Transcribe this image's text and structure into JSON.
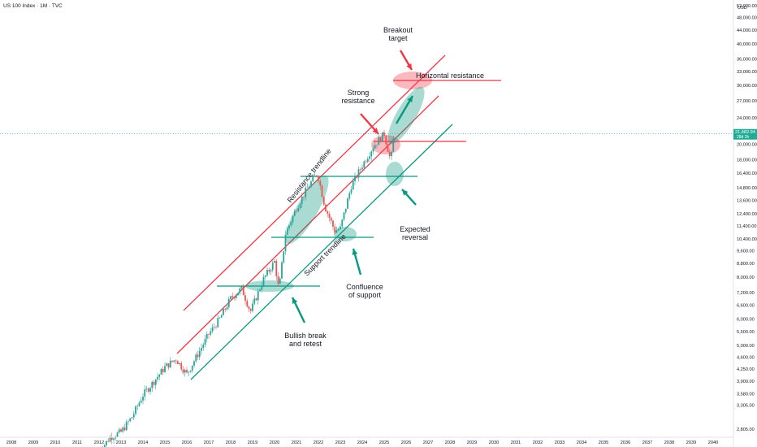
{
  "header": {
    "symbol_title": "US 100 Index · 1M · TVC"
  },
  "chart_data": {
    "type": "candlestick",
    "currency_label": "USD",
    "y_axis_ticks": [
      2805,
      3305,
      3580,
      3900,
      4250,
      4600,
      5000,
      5500,
      6000,
      6600,
      7200,
      8000,
      8800,
      9600,
      10400,
      11400,
      12400,
      13600,
      14800,
      16400,
      18000,
      20000,
      24000,
      27000,
      30000,
      33000,
      36000,
      40000,
      44000,
      48000,
      52000
    ],
    "y_axis_tick_labels": [
      "2,805.00",
      "3,305.00",
      "3,580.00",
      "3,900.00",
      "4,250.00",
      "4,600.00",
      "5,000.00",
      "5,500.00",
      "6,000.00",
      "6,600.00",
      "7,200.00",
      "8,000.00",
      "8,800.00",
      "9,600.00",
      "10,400.00",
      "11,400.00",
      "12,400.00",
      "13,600.00",
      "14,800.00",
      "16,400.00",
      "18,000.00",
      "20,000.00",
      "24,000.00",
      "27,000.00",
      "30,000.00",
      "33,000.00",
      "36,000.00",
      "40,000.00",
      "44,000.00",
      "48,000.00",
      "52,000.00"
    ],
    "y_scale": "log",
    "x_axis_labels": [
      "2008",
      "2009",
      "2010",
      "2011",
      "2012",
      "2013",
      "2014",
      "2015",
      "2016",
      "2017",
      "2018",
      "2019",
      "2020",
      "2021",
      "2022",
      "2023",
      "2024",
      "2025",
      "2026",
      "2027",
      "2028",
      "2029",
      "2030",
      "2031",
      "2032",
      "2033",
      "2034",
      "2035",
      "2036",
      "2037",
      "2038",
      "2039",
      "2040"
    ],
    "last_price_label": "21,482.94",
    "last_price_sublabel": "28d 2h",
    "last_price": 21482.94,
    "series": [
      {
        "x": [
          2012.0,
          2012.5,
          2013.0,
          2013.5,
          2014.0,
          2014.5,
          2015.0,
          2015.5,
          2016.0,
          2016.5,
          2017.0,
          2017.5,
          2018.0,
          2018.5,
          2018.9,
          2019.5,
          2020.0,
          2020.2,
          2020.5,
          2021.0,
          2021.5,
          2021.95,
          2022.3,
          2022.75,
          2023.0,
          2023.5,
          2024.0,
          2024.5,
          2025.0,
          2025.3,
          2025.45
        ],
        "y": [
          2400,
          2650,
          2750,
          3050,
          3550,
          3900,
          4300,
          4550,
          4100,
          4700,
          5400,
          6000,
          6900,
          7400,
          6300,
          7900,
          8900,
          7300,
          10800,
          12900,
          14800,
          16400,
          13000,
          11000,
          11200,
          15000,
          17300,
          19700,
          21500,
          17800,
          21483
        ]
      }
    ],
    "annotations": {
      "breakout_target": "Breakout\ntarget",
      "horizontal_resistance": "Horizontal resistance",
      "strong_resistance": "Strong\nresistance",
      "resistance_trendline": "Resistance trendline",
      "support_trendline": "Support trendline",
      "expected_reversal": "Expected\nreversal",
      "confluence_of_support": "Confluence\nof support",
      "bullish_break_and_retest": "Bullish break\nand retest"
    },
    "colors": {
      "up": "#26a69a",
      "down": "#ef5350",
      "red_line": "#f23645",
      "green_line": "#089981",
      "price_line": "#22ab94"
    }
  }
}
